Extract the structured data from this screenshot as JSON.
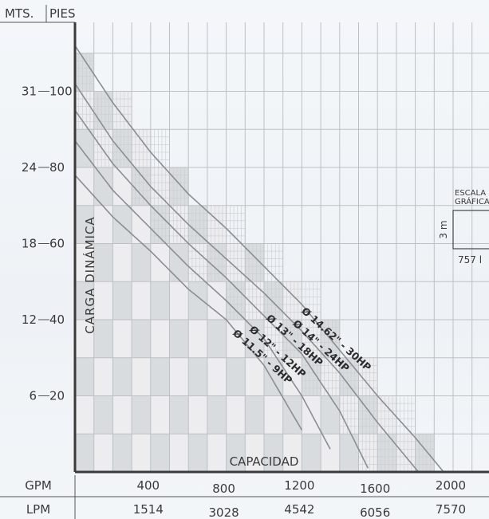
{
  "chart_data": {
    "type": "line",
    "title": "",
    "header": {
      "left_unit": "MTS.",
      "right_unit": "PIES"
    },
    "ylabel": "CARGA DINÁMICA",
    "xlabel": "CAPACIDAD",
    "x_unit_rows": [
      {
        "unit": "GPM",
        "ticks": [
          "400",
          "800",
          "1200",
          "1600",
          "2000"
        ]
      },
      {
        "unit": "LPM",
        "ticks": [
          "1514",
          "3028",
          "4542",
          "6056",
          "7570"
        ]
      }
    ],
    "xlim": [
      0,
      2080
    ],
    "ylim": [
      0,
      118
    ],
    "y_ticks": [
      {
        "feet": 20,
        "meters": "6",
        "feet_label": "20"
      },
      {
        "feet": 40,
        "meters": "12",
        "feet_label": "40"
      },
      {
        "feet": 60,
        "meters": "18",
        "feet_label": "60"
      },
      {
        "feet": 80,
        "meters": "24",
        "feet_label": "80"
      },
      {
        "feet": 100,
        "meters": "31",
        "feet_label": "100"
      }
    ],
    "series": [
      {
        "name": "Ø 14.62\" - 30HP",
        "x": [
          0,
          200,
          400,
          600,
          800,
          1000,
          1200,
          1400,
          1600,
          1800,
          1950,
          2030
        ],
        "y": [
          112,
          97,
          84,
          73,
          64,
          54,
          44,
          32,
          20,
          9,
          0,
          -6
        ]
      },
      {
        "name": "Ø 14\" - 24HP",
        "x": [
          0,
          200,
          400,
          600,
          800,
          1000,
          1200,
          1400,
          1600,
          1800,
          1920
        ],
        "y": [
          102,
          87,
          75,
          65,
          56,
          47,
          37,
          26,
          13,
          1,
          -6
        ]
      },
      {
        "name": "Ø 13\" - 18HP",
        "x": [
          0,
          200,
          400,
          600,
          800,
          1000,
          1200,
          1400,
          1550
        ],
        "y": [
          95,
          81,
          70,
          60,
          51,
          41,
          31,
          16,
          1
        ]
      },
      {
        "name": "Ø 12\" - 12HP",
        "x": [
          0,
          200,
          400,
          600,
          800,
          1000,
          1200,
          1350
        ],
        "y": [
          87,
          74,
          64,
          54,
          45,
          35,
          20,
          6
        ]
      },
      {
        "name": "Ø 11.5\" - 9HP",
        "x": [
          0,
          200,
          400,
          600,
          800,
          1000,
          1200
        ],
        "y": [
          78,
          67,
          58,
          48,
          40,
          28,
          11
        ]
      }
    ],
    "grid": true,
    "scale_box": {
      "title": "ESCALA GRÁFICA",
      "height_label": "3 m",
      "width_label": "757 l"
    },
    "colors": {
      "curve": "#8a8e93",
      "grid": "#bcc1c6",
      "shade": "#d6d9dc",
      "frame": "#3a3a3a"
    }
  }
}
